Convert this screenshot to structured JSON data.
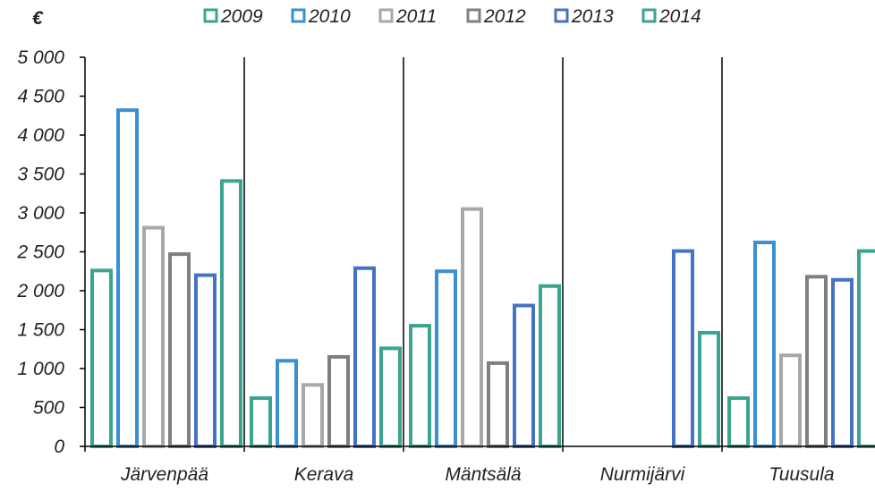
{
  "chart_data": {
    "type": "bar",
    "title": "",
    "unit_label": "€",
    "xlabel": "",
    "ylabel": "",
    "ylim": [
      0,
      5000
    ],
    "yticks": [
      0,
      500,
      1000,
      1500,
      2000,
      2500,
      3000,
      3500,
      4000,
      4500,
      5000
    ],
    "ytick_labels": [
      "0",
      "500",
      "1 000",
      "1 500",
      "2 000",
      "2 500",
      "3 000",
      "3 500",
      "4 000",
      "4 500",
      "5 000"
    ],
    "categories": [
      "Järvenpää",
      "Kerava",
      "Mäntsälä",
      "Nurmijärvi",
      "Tuusula"
    ],
    "legend_position": "top",
    "grid": false,
    "series": [
      {
        "name": "2009",
        "color": "#3AA58E",
        "values": [
          2260,
          620,
          1550,
          0,
          620
        ]
      },
      {
        "name": "2010",
        "color": "#3A8FD0",
        "values": [
          4320,
          1100,
          2250,
          0,
          2620
        ]
      },
      {
        "name": "2011",
        "color": "#A8A8A8",
        "values": [
          2810,
          790,
          3050,
          0,
          1170
        ]
      },
      {
        "name": "2012",
        "color": "#7F7F7F",
        "values": [
          2470,
          1150,
          1070,
          0,
          2180
        ]
      },
      {
        "name": "2013",
        "color": "#4472C4",
        "values": [
          2200,
          2290,
          1810,
          2510,
          2140
        ]
      },
      {
        "name": "2014",
        "color": "#3AA58E",
        "values": [
          3410,
          1260,
          2060,
          1460,
          2510
        ]
      }
    ]
  }
}
